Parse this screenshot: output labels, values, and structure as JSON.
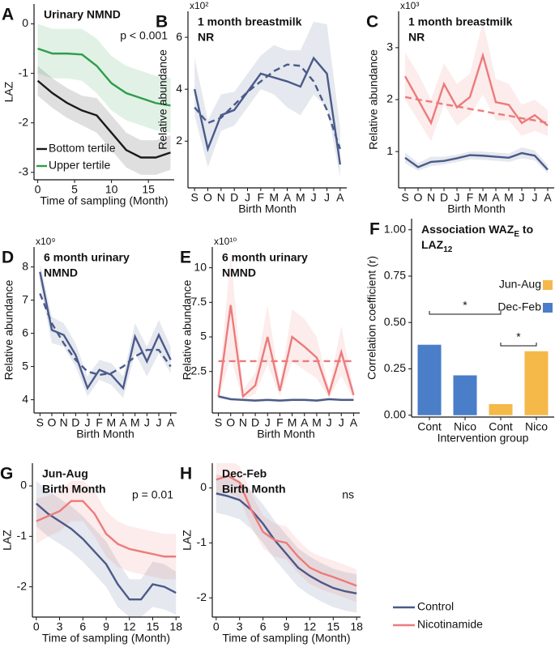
{
  "chart_data": [
    {
      "panel": "A",
      "type": "line",
      "title": [
        "Urinary NMND"
      ],
      "annotation": "p < 0.001",
      "x_label": "Time of sampling (Month)",
      "y_label": "LAZ",
      "x": [
        0,
        2,
        4,
        6,
        8,
        10,
        12,
        14,
        16,
        18
      ],
      "xlim": [
        -0.5,
        18.5
      ],
      "xticks": [
        0,
        5,
        10,
        15
      ],
      "ylim": [
        -3.15,
        0.4
      ],
      "yticks": [
        0,
        -1,
        -2,
        -3
      ],
      "legend": "lower left",
      "series": [
        {
          "name": "Bottom tertile",
          "color": "#1a1a1a",
          "values": [
            -1.15,
            -1.4,
            -1.6,
            -1.75,
            -1.85,
            -2.2,
            -2.55,
            -2.7,
            -2.7,
            -2.6
          ],
          "lower": [
            -1.45,
            -1.7,
            -1.9,
            -2.05,
            -2.2,
            -2.55,
            -2.9,
            -3.05,
            -3.05,
            -2.95
          ],
          "upper": [
            -0.85,
            -1.1,
            -1.3,
            -1.45,
            -1.5,
            -1.85,
            -2.2,
            -2.35,
            -2.35,
            -2.25
          ]
        },
        {
          "name": "Upper tertile",
          "color": "#2e9e4a",
          "values": [
            -0.5,
            -0.6,
            -0.6,
            -0.62,
            -0.85,
            -1.2,
            -1.4,
            -1.5,
            -1.6,
            -1.65
          ],
          "lower": [
            -1.0,
            -1.1,
            -1.1,
            -1.15,
            -1.4,
            -1.75,
            -1.95,
            -2.05,
            -2.15,
            -2.2
          ],
          "upper": [
            0.0,
            -0.1,
            -0.1,
            -0.1,
            -0.3,
            -0.65,
            -0.85,
            -0.95,
            -1.05,
            -1.1
          ]
        }
      ]
    },
    {
      "panel": "B",
      "type": "line",
      "title": [
        "1 month breastmilk",
        "NR"
      ],
      "multiplier": "x10²",
      "x_label": "Birth Month",
      "y_label": "Relative abundance",
      "categories": [
        "S",
        "O",
        "N",
        "D",
        "J",
        "F",
        "M",
        "A",
        "M",
        "J",
        "J",
        "A"
      ],
      "ylim": [
        0.2,
        7.0
      ],
      "yticks": [
        2,
        4,
        6
      ],
      "series": [
        {
          "color": "#4a5a8a",
          "values": [
            4.0,
            1.7,
            3.0,
            3.2,
            3.9,
            4.6,
            4.45,
            4.3,
            4.1,
            5.2,
            4.6,
            1.1
          ],
          "lower": [
            3.0,
            1.0,
            2.4,
            2.6,
            3.3,
            4.0,
            3.8,
            3.3,
            3.0,
            3.8,
            3.3,
            0.6
          ],
          "upper": [
            5.2,
            2.8,
            3.8,
            3.9,
            4.6,
            5.3,
            5.7,
            5.5,
            5.5,
            6.6,
            6.5,
            2.5
          ]
        },
        {
          "color": "#4a5a8a",
          "dashed": true,
          "values": [
            3.3,
            2.7,
            2.9,
            3.4,
            3.9,
            4.3,
            4.7,
            4.95,
            4.9,
            4.3,
            3.2,
            1.7
          ]
        }
      ]
    },
    {
      "panel": "C",
      "type": "line",
      "title": [
        "1 month breastmilk",
        "NR"
      ],
      "multiplier": "x10³",
      "x_label": "Birth Month",
      "y_label": "Relative abundance",
      "categories": [
        "S",
        "O",
        "N",
        "D",
        "J",
        "F",
        "M",
        "A",
        "M",
        "J",
        "J",
        "A"
      ],
      "ylim": [
        0.3,
        3.7
      ],
      "yticks": [
        1,
        2,
        3
      ],
      "series": [
        {
          "color": "#ec7b7b",
          "values": [
            2.45,
            2.0,
            1.55,
            2.3,
            1.85,
            2.05,
            2.85,
            1.95,
            1.9,
            1.55,
            1.7,
            1.5
          ],
          "lower": [
            2.0,
            1.6,
            1.2,
            1.9,
            1.5,
            1.7,
            2.1,
            1.6,
            1.6,
            1.3,
            1.4,
            1.3
          ],
          "upper": [
            2.9,
            2.5,
            2.0,
            2.7,
            2.3,
            2.5,
            3.5,
            2.4,
            2.3,
            1.9,
            2.0,
            1.8
          ]
        },
        {
          "color": "#ec7b7b",
          "dashed": true,
          "values": [
            2.05,
            2.0,
            1.96,
            1.91,
            1.87,
            1.82,
            1.78,
            1.73,
            1.69,
            1.64,
            1.6,
            1.55
          ]
        },
        {
          "color": "#4a5a8a",
          "values": [
            0.88,
            0.7,
            0.8,
            0.82,
            0.87,
            0.93,
            0.92,
            0.9,
            0.88,
            0.97,
            0.92,
            0.65
          ],
          "lower": [
            0.78,
            0.63,
            0.72,
            0.75,
            0.8,
            0.85,
            0.84,
            0.82,
            0.8,
            0.87,
            0.83,
            0.58
          ],
          "upper": [
            0.98,
            0.78,
            0.9,
            0.9,
            0.94,
            1.0,
            1.0,
            0.98,
            0.96,
            1.08,
            1.02,
            0.74
          ]
        }
      ]
    },
    {
      "panel": "D",
      "type": "line",
      "title": [
        "6 month urinary",
        "NMND"
      ],
      "multiplier": "x10⁹",
      "x_label": "Birth Month",
      "y_label": "Relative abundance",
      "categories": [
        "S",
        "O",
        "N",
        "D",
        "J",
        "F",
        "M",
        "A",
        "M",
        "J",
        "J",
        "A"
      ],
      "ylim": [
        3.6,
        8.6
      ],
      "yticks": [
        4,
        5,
        6,
        7,
        8
      ],
      "series": [
        {
          "color": "#4a5a8a",
          "values": [
            7.85,
            6.1,
            5.95,
            5.35,
            4.35,
            4.9,
            4.75,
            4.35,
            5.9,
            5.15,
            5.95,
            5.2
          ],
          "lower": [
            7.5,
            5.7,
            5.6,
            5.0,
            4.1,
            4.6,
            4.45,
            4.05,
            5.4,
            4.7,
            5.4,
            4.8
          ],
          "upper": [
            8.1,
            6.5,
            6.3,
            5.7,
            4.7,
            5.2,
            5.1,
            4.7,
            6.3,
            5.6,
            6.4,
            5.6
          ]
        },
        {
          "color": "#4a5a8a",
          "dashed": true,
          "values": [
            7.2,
            6.3,
            5.7,
            5.2,
            4.85,
            4.75,
            4.8,
            5.0,
            5.3,
            5.5,
            5.5,
            5.0
          ]
        }
      ]
    },
    {
      "panel": "E",
      "type": "line",
      "title": [
        "6 month urinary",
        "NMND"
      ],
      "multiplier": "x10¹⁰",
      "x_label": "Birth Month",
      "y_label": "Relative abundance",
      "categories": [
        "S",
        "O",
        "N",
        "D",
        "J",
        "F",
        "M",
        "A",
        "M",
        "J",
        "J",
        "A"
      ],
      "ylim": [
        -0.5,
        11.5
      ],
      "yticks": [
        2.5,
        5,
        7.5,
        10
      ],
      "series": [
        {
          "color": "#ec7b7b",
          "values": [
            0.7,
            7.3,
            0.7,
            1.5,
            5.0,
            1.1,
            5.0,
            4.3,
            3.5,
            0.9,
            3.9,
            0.8
          ],
          "lower": [
            0.5,
            3.5,
            0.4,
            0.9,
            3.0,
            0.7,
            3.2,
            2.6,
            2.0,
            0.6,
            2.2,
            0.5
          ],
          "upper": [
            1.0,
            11.0,
            1.2,
            2.4,
            7.3,
            1.6,
            7.0,
            6.3,
            5.0,
            1.3,
            5.8,
            1.2
          ]
        },
        {
          "color": "#ec7b7b",
          "dashed": true,
          "values": [
            3.25,
            3.25,
            3.25,
            3.25,
            3.25,
            3.25,
            3.25,
            3.25,
            3.25,
            3.25,
            3.25,
            3.25
          ]
        },
        {
          "color": "#4a5a8a",
          "values": [
            0.7,
            0.5,
            0.45,
            0.4,
            0.45,
            0.4,
            0.45,
            0.45,
            0.4,
            0.5,
            0.45,
            0.45
          ],
          "lower": [
            0.55,
            0.4,
            0.35,
            0.3,
            0.35,
            0.3,
            0.35,
            0.35,
            0.3,
            0.4,
            0.35,
            0.35
          ],
          "upper": [
            0.85,
            0.6,
            0.55,
            0.5,
            0.55,
            0.5,
            0.55,
            0.55,
            0.5,
            0.6,
            0.55,
            0.55
          ]
        }
      ]
    },
    {
      "panel": "F",
      "type": "bar",
      "title": [
        [
          "Association WAZ",
          {
            "sub": "E"
          },
          " to"
        ],
        [
          "LAZ",
          {
            "sub": "12"
          }
        ]
      ],
      "x_label": "Intervention group",
      "y_label": "Correlation coefficient (r)",
      "categories": [
        "Cont",
        "Nico",
        "Cont",
        "Nico"
      ],
      "values": [
        0.38,
        0.215,
        0.06,
        0.345
      ],
      "colors": [
        "#4a7ec8",
        "#4a7ec8",
        "#f5b94a",
        "#f5b94a"
      ],
      "ylim": [
        -0.01,
        1.06
      ],
      "yticks": [
        {
          "value": 0,
          "label": "0.00"
        },
        {
          "value": 0.25,
          "label": "0.25"
        },
        {
          "value": 0.5,
          "label": "0.50"
        },
        {
          "value": 0.75,
          "label": "0.75"
        },
        {
          "value": 1,
          "label": "1.00"
        }
      ],
      "legend": "upper right",
      "legend_items": [
        {
          "name": "Jun-Aug",
          "color": "#f5b94a"
        },
        {
          "name": "Dec-Feb",
          "color": "#4a7ec8"
        }
      ],
      "annotations": [
        "*",
        "*"
      ]
    },
    {
      "panel": "G",
      "type": "line",
      "title": [
        "Jun-Aug",
        "Birth Month"
      ],
      "annotation": "p = 0.01",
      "x_label": "Time of sampling (Month)",
      "y_label": "LAZ",
      "x": [
        0,
        1.5,
        3,
        4.5,
        6,
        7.5,
        9,
        10.5,
        12,
        13.5,
        15,
        16.5,
        18
      ],
      "xlim": [
        -0.5,
        18.5
      ],
      "xticks": [
        0,
        3,
        6,
        9,
        12,
        15,
        18
      ],
      "ylim": [
        -2.6,
        0.45
      ],
      "yticks": [
        0,
        -1,
        -2
      ],
      "series": [
        {
          "color": "#4a5a8a",
          "values": [
            -0.35,
            -0.55,
            -0.7,
            -0.85,
            -1.05,
            -1.3,
            -1.55,
            -1.95,
            -2.25,
            -2.25,
            -1.95,
            -2.0,
            -2.12
          ],
          "lower": [
            -0.8,
            -1.0,
            -1.15,
            -1.3,
            -1.5,
            -1.75,
            -2.0,
            -2.4,
            -2.6,
            -2.6,
            -2.4,
            -2.45,
            -2.55
          ],
          "upper": [
            0.1,
            -0.1,
            -0.25,
            -0.4,
            -0.6,
            -0.85,
            -1.1,
            -1.5,
            -1.85,
            -1.85,
            -1.5,
            -1.55,
            -1.7
          ]
        },
        {
          "color": "#ec7b7b",
          "values": [
            -0.7,
            -0.6,
            -0.5,
            -0.3,
            -0.3,
            -0.55,
            -0.95,
            -1.15,
            -1.25,
            -1.3,
            -1.35,
            -1.4,
            -1.4
          ],
          "lower": [
            -1.15,
            -1.0,
            -0.9,
            -0.7,
            -0.7,
            -1.0,
            -1.4,
            -1.6,
            -1.7,
            -1.75,
            -1.8,
            -1.85,
            -1.85
          ],
          "upper": [
            -0.25,
            -0.2,
            -0.1,
            0.1,
            0.1,
            -0.1,
            -0.5,
            -0.7,
            -0.8,
            -0.85,
            -0.9,
            -0.95,
            -0.95
          ]
        }
      ]
    },
    {
      "panel": "H",
      "type": "line",
      "title": [
        "Dec-Feb",
        "Birth Month"
      ],
      "annotation": "ns",
      "x_label": "Time of sampling (Month)",
      "y_label": "LAZ",
      "x": [
        0,
        1.5,
        3,
        4.5,
        6,
        7.5,
        9,
        10.5,
        12,
        13.5,
        15,
        16.5,
        18
      ],
      "xlim": [
        -0.5,
        18.5
      ],
      "xticks": [
        0,
        3,
        6,
        9,
        12,
        15,
        18
      ],
      "ylim": [
        -2.35,
        0.45
      ],
      "yticks": [
        0,
        -1,
        -2
      ],
      "legend": "outside right",
      "series": [
        {
          "name": "Control",
          "color": "#4a5a8a",
          "values": [
            -0.1,
            -0.15,
            -0.22,
            -0.4,
            -0.65,
            -0.95,
            -1.2,
            -1.45,
            -1.6,
            -1.72,
            -1.82,
            -1.88,
            -1.92
          ],
          "lower": [
            -0.45,
            -0.5,
            -0.57,
            -0.75,
            -1.0,
            -1.3,
            -1.55,
            -1.8,
            -1.95,
            -2.07,
            -2.17,
            -2.23,
            -2.27
          ],
          "upper": [
            0.25,
            0.2,
            0.13,
            -0.05,
            -0.3,
            -0.6,
            -0.85,
            -1.1,
            -1.25,
            -1.37,
            -1.47,
            -1.53,
            -1.57
          ]
        },
        {
          "name": "Nicotinamide",
          "color": "#ec7b7b",
          "values": [
            0.15,
            0.22,
            0.1,
            -0.4,
            -0.8,
            -0.95,
            -1.0,
            -1.25,
            -1.45,
            -1.55,
            -1.62,
            -1.7,
            -1.78
          ],
          "lower": [
            -0.15,
            -0.08,
            -0.2,
            -0.7,
            -1.1,
            -1.25,
            -1.3,
            -1.55,
            -1.75,
            -1.85,
            -1.92,
            -2.0,
            -2.08
          ],
          "upper": [
            0.45,
            0.52,
            0.4,
            -0.1,
            -0.5,
            -0.65,
            -0.7,
            -0.95,
            -1.15,
            -1.25,
            -1.32,
            -1.4,
            -1.48
          ]
        }
      ]
    }
  ]
}
